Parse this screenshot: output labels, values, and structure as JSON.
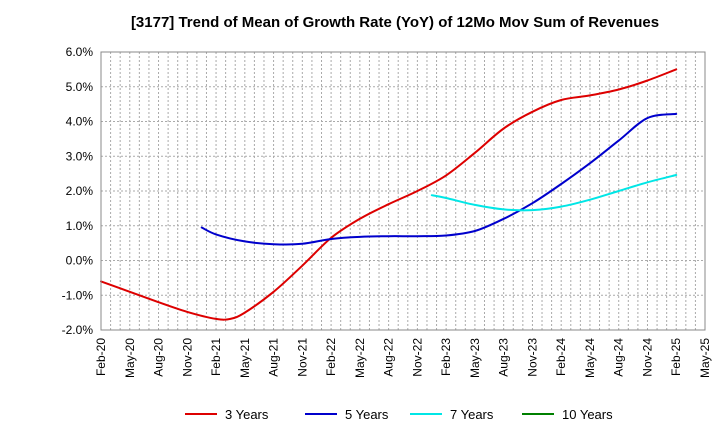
{
  "chart_data": {
    "type": "line",
    "title": "[3177]  Trend of Mean of Growth Rate (YoY) of 12Mo Mov Sum of Revenues",
    "xlabel": "",
    "ylabel": "",
    "ylim": [
      -2.0,
      6.0
    ],
    "y_ticks": [
      -2.0,
      -1.0,
      0.0,
      1.0,
      2.0,
      3.0,
      4.0,
      5.0,
      6.0
    ],
    "y_tick_labels": [
      "-2.0%",
      "-1.0%",
      "0.0%",
      "1.0%",
      "2.0%",
      "3.0%",
      "4.0%",
      "5.0%",
      "6.0%"
    ],
    "x_tick_labels": [
      "Feb-20",
      "May-20",
      "Aug-20",
      "Nov-20",
      "Feb-21",
      "May-21",
      "Aug-21",
      "Nov-21",
      "Feb-22",
      "May-22",
      "Aug-22",
      "Nov-22",
      "Feb-23",
      "May-23",
      "Aug-23",
      "Nov-23",
      "Feb-24",
      "May-24",
      "Aug-24",
      "Nov-24",
      "Feb-25",
      "May-25"
    ],
    "grid": true,
    "legend_position": "bottom",
    "series": [
      {
        "name": "3 Years",
        "color": "#dd0000",
        "points": [
          [
            0,
            -0.6
          ],
          [
            1,
            -0.9
          ],
          [
            2,
            -1.2
          ],
          [
            3,
            -1.48
          ],
          [
            4,
            -1.68
          ],
          [
            4.5,
            -1.68
          ],
          [
            5,
            -1.5
          ],
          [
            6,
            -0.9
          ],
          [
            7,
            -0.15
          ],
          [
            8,
            0.65
          ],
          [
            9,
            1.2
          ],
          [
            10,
            1.62
          ],
          [
            11,
            2.0
          ],
          [
            12,
            2.45
          ],
          [
            13,
            3.1
          ],
          [
            14,
            3.8
          ],
          [
            15,
            4.28
          ],
          [
            16,
            4.62
          ],
          [
            17,
            4.75
          ],
          [
            18,
            4.92
          ],
          [
            19,
            5.18
          ],
          [
            20,
            5.5
          ]
        ]
      },
      {
        "name": "5 Years",
        "color": "#0000cc",
        "points": [
          [
            3.5,
            0.95
          ],
          [
            4,
            0.75
          ],
          [
            5,
            0.55
          ],
          [
            6,
            0.47
          ],
          [
            7,
            0.48
          ],
          [
            8,
            0.62
          ],
          [
            9,
            0.68
          ],
          [
            10,
            0.7
          ],
          [
            11,
            0.7
          ],
          [
            12,
            0.72
          ],
          [
            13,
            0.85
          ],
          [
            14,
            1.2
          ],
          [
            15,
            1.65
          ],
          [
            16,
            2.2
          ],
          [
            17,
            2.8
          ],
          [
            18,
            3.45
          ],
          [
            19,
            4.1
          ],
          [
            20,
            4.22
          ]
        ]
      },
      {
        "name": "7 Years",
        "color": "#00e6e6",
        "points": [
          [
            11.5,
            1.88
          ],
          [
            12,
            1.8
          ],
          [
            13,
            1.6
          ],
          [
            14,
            1.47
          ],
          [
            15,
            1.45
          ],
          [
            16,
            1.55
          ],
          [
            17,
            1.75
          ],
          [
            18,
            2.0
          ],
          [
            19,
            2.25
          ],
          [
            20,
            2.46
          ]
        ]
      },
      {
        "name": "10 Years",
        "color": "#008000",
        "points": []
      }
    ]
  }
}
